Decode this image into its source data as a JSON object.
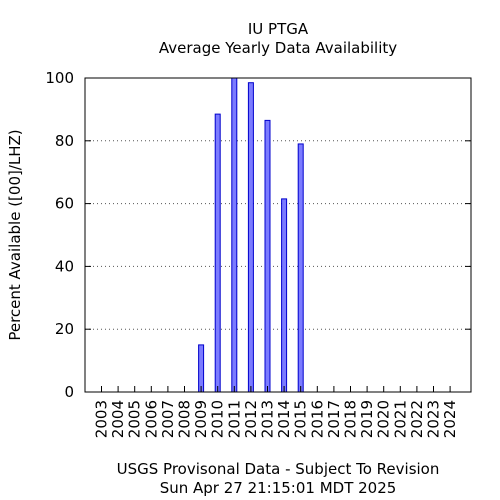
{
  "chart_data": {
    "type": "bar",
    "title": "IU PTGA",
    "subtitle": "Average Yearly Data Availability",
    "xlabel": "",
    "ylabel": "Percent Available ([00]/LHZ)",
    "ylim": [
      0,
      100
    ],
    "yticks": [
      "0",
      "20",
      "40",
      "60",
      "80",
      "100"
    ],
    "grid": true,
    "legend": "none",
    "categories": [
      "2003",
      "2004",
      "2005",
      "2006",
      "2007",
      "2008",
      "2009",
      "2010",
      "2011",
      "2012",
      "2013",
      "2014",
      "2015",
      "2016",
      "2017",
      "2018",
      "2019",
      "2020",
      "2021",
      "2022",
      "2023",
      "2024"
    ],
    "values": [
      0,
      0,
      0,
      0,
      0,
      0,
      15,
      88.5,
      100,
      98.5,
      86.5,
      61.5,
      79,
      0,
      0,
      0,
      0,
      0,
      0,
      0,
      0,
      0
    ],
    "bar_color": "#7b7bff",
    "bar_edge_color": "#0000cc",
    "footer": [
      "USGS Provisonal Data - Subject To Revision",
      "Sun Apr 27 21:15:01 MDT 2025"
    ]
  }
}
